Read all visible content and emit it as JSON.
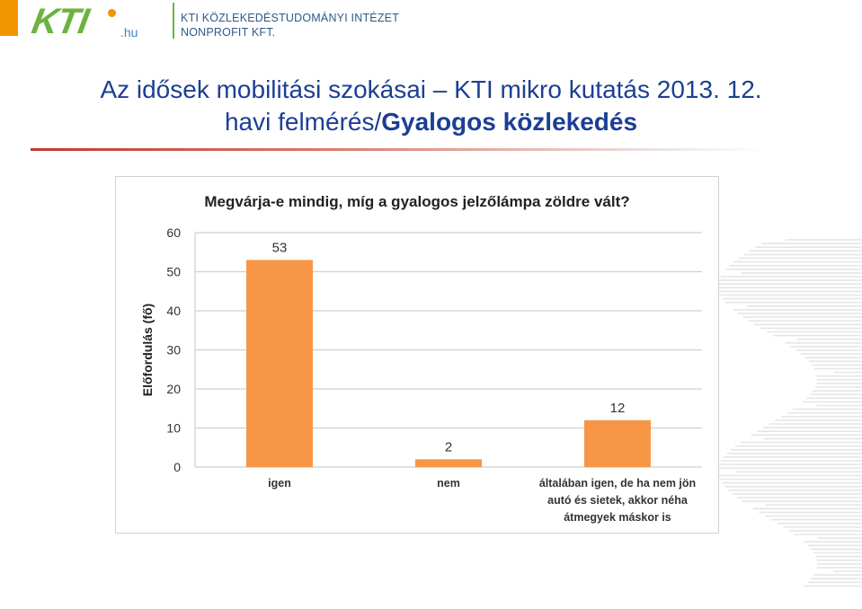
{
  "header": {
    "logo_text": "KTI",
    "logo_suffix": ".hu",
    "org_line1": "KTI KÖZLEKEDÉSTUDOMÁNYI INTÉZET",
    "org_line2": "NONPROFIT KFT."
  },
  "slide": {
    "title_line1": "Az idősek mobilitási szokásai – KTI mikro kutatás 2013. 12.",
    "title_line2_prefix": "havi felmérés/",
    "title_line2_bold": "Gyalogos közlekedés"
  },
  "colors": {
    "accent": "#f29400",
    "brand_green": "#6cb33f",
    "title_blue": "#1c3f94",
    "bar": "#f79646"
  },
  "chart_data": {
    "type": "bar",
    "title": "Megvárja-e mindig, míg a gyalogos jelzőlámpa zöldre vált?",
    "ylabel": "Előfordulás (fő)",
    "xlabel": "",
    "categories": [
      [
        "igen"
      ],
      [
        "nem"
      ],
      [
        "általában igen, de ha nem jön",
        "autó és sietek, akkor néha",
        "átmegyek máskor is"
      ]
    ],
    "values": [
      53,
      2,
      12
    ],
    "ylim": [
      0,
      60
    ],
    "yticks": [
      0,
      10,
      20,
      30,
      40,
      50,
      60
    ],
    "grid": true,
    "data_labels": true
  }
}
